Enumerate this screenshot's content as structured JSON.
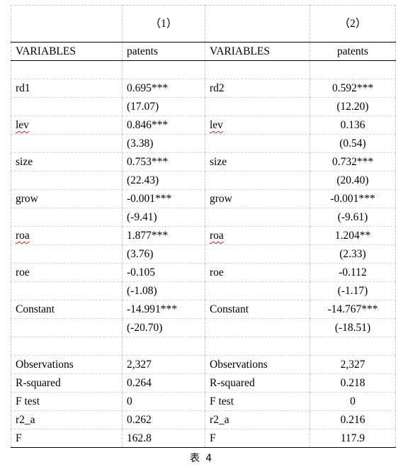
{
  "header": {
    "colnum_1": "（1）",
    "colnum_2": "（2）",
    "var_label_1": "VARIABLES",
    "dep_var_1": "patents",
    "var_label_2": "VARIABLES",
    "dep_var_2": "patents"
  },
  "coef_rows": [
    {
      "var1": "rd1",
      "coef1": "0.695***",
      "var2": "rd2",
      "coef2": "0.592***"
    },
    {
      "var1": "",
      "coef1": "(17.07)",
      "var2": "",
      "coef2": "(12.20)"
    },
    {
      "var1": "lev",
      "coef1": "0.846***",
      "var2": "lev",
      "coef2": "0.136"
    },
    {
      "var1": "",
      "coef1": "(3.38)",
      "var2": "",
      "coef2": "(0.54)"
    },
    {
      "var1": "size",
      "coef1": "0.753***",
      "var2": "size",
      "coef2": "0.732***"
    },
    {
      "var1": "",
      "coef1": "(22.43)",
      "var2": "",
      "coef2": "(20.40)"
    },
    {
      "var1": "grow",
      "coef1": "-0.001***",
      "var2": "grow",
      "coef2": "-0.001***"
    },
    {
      "var1": "",
      "coef1": "(-9.41)",
      "var2": "",
      "coef2": "(-9.61)"
    },
    {
      "var1": "roa",
      "coef1": "1.877***",
      "var2": "roa",
      "coef2": "1.204**"
    },
    {
      "var1": "",
      "coef1": "(3.76)",
      "var2": "",
      "coef2": "(2.33)"
    },
    {
      "var1": "roe",
      "coef1": "-0.105",
      "var2": "roe",
      "coef2": "-0.112"
    },
    {
      "var1": "",
      "coef1": "(-1.08)",
      "var2": "",
      "coef2": "(-1.17)"
    },
    {
      "var1": "Constant",
      "coef1": "-14.991***",
      "var2": "Constant",
      "coef2": "-14.767***"
    },
    {
      "var1": "",
      "coef1": "(-20.70)",
      "var2": "",
      "coef2": "(-18.51)"
    }
  ],
  "stat_rows": [
    {
      "var1": "Observations",
      "val1": "2,327",
      "var2": "Observations",
      "val2": "2,327"
    },
    {
      "var1": "R-squared",
      "val1": "0.264",
      "var2": "R-squared",
      "val2": "0.218"
    },
    {
      "var1": "F test",
      "val1": "0",
      "var2": "F test",
      "val2": "0"
    },
    {
      "var1": "r2_a",
      "val1": "0.262",
      "var2": "r2_a",
      "val2": "0.216"
    },
    {
      "var1": "F",
      "val1": "162.8",
      "var2": "F",
      "val2": "117.9"
    }
  ],
  "caption": "表 4"
}
